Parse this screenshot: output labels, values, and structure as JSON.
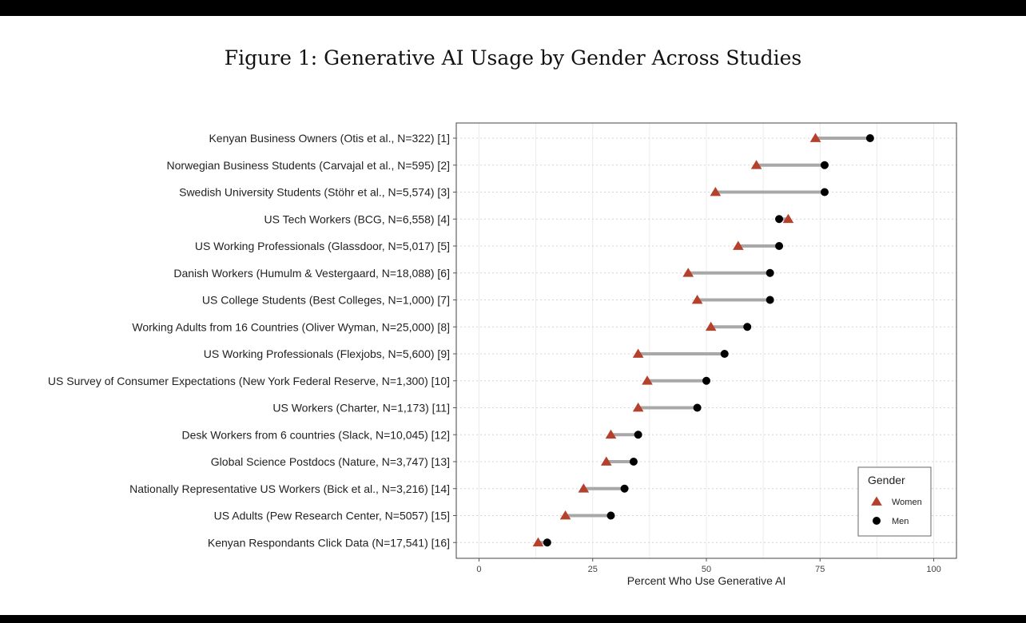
{
  "figure": {
    "title": "Figure 1: Generative AI Usage by Gender Across Studies"
  },
  "chart_data": {
    "type": "dumbbell",
    "title": "Figure 1: Generative AI Usage by Gender Across Studies",
    "xlabel": "Percent Who Use Generative AI",
    "ylabel": "",
    "xlim": [
      -5,
      105
    ],
    "xticks": [
      0,
      25,
      50,
      75,
      100
    ],
    "grid": true,
    "legend": {
      "title": "Gender",
      "position": "bottom-right",
      "entries": [
        {
          "name": "Women",
          "shape": "triangle",
          "color": "#b5412c"
        },
        {
          "name": "Men",
          "shape": "circle",
          "color": "#000000"
        }
      ]
    },
    "colors": {
      "women": "#b5412c",
      "men": "#000000",
      "segment": "#a8a8a8"
    },
    "categories": [
      "Kenyan Business Owners (Otis et al., N=322) [1]",
      "Norwegian Business Students (Carvajal et al., N=595) [2]",
      "Swedish University Students (Stöhr et al., N=5,574)  [3]",
      "US Tech Workers (BCG, N=6,558) [4]",
      "US Working Professionals (Glassdoor, N=5,017) [5]",
      "Danish Workers (Humulm & Vestergaard, N=18,088) [6]",
      "US College Students (Best Colleges, N=1,000) [7]",
      "Working Adults from 16 Countries (Oliver Wyman, N=25,000) [8]",
      "US Working Professionals (Flexjobs, N=5,600) [9]",
      "US Survey of Consumer Expectations (New York Federal Reserve, N=1,300) [10]",
      "US Workers (Charter, N=1,173) [11]",
      "Desk Workers from 6 countries (Slack, N=10,045)  [12]",
      "Global Science Postdocs (Nature, N=3,747) [13]",
      "Nationally Representative US Workers (Bick et al., N=3,216) [14]",
      "US Adults (Pew Research Center, N=5057) [15]",
      "Kenyan Respondants Click Data (N=17,541) [16]"
    ],
    "series": [
      {
        "name": "Women",
        "values": [
          74,
          61,
          52,
          68,
          57,
          46,
          48,
          51,
          35,
          37,
          35,
          29,
          28,
          23,
          19,
          13
        ]
      },
      {
        "name": "Men",
        "values": [
          86,
          76,
          76,
          66,
          66,
          64,
          64,
          59,
          54,
          50,
          48,
          35,
          34,
          32,
          29,
          15
        ]
      }
    ]
  }
}
